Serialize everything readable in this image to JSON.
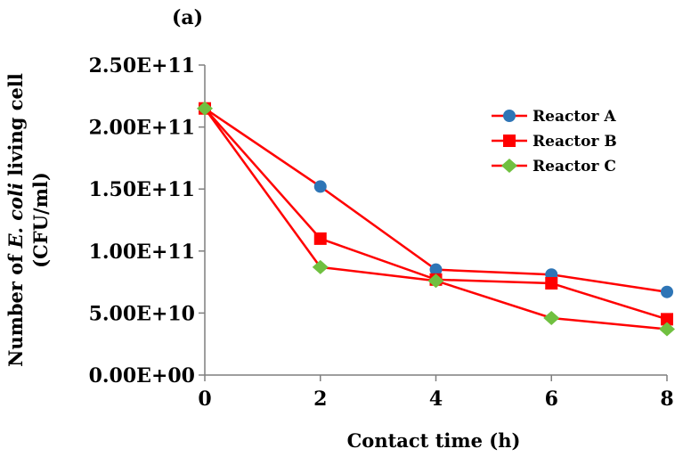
{
  "panel_label": "(a)",
  "chart_data": {
    "type": "line",
    "x_label": "Contact time (h)",
    "y_label_line1_pre": "Number of ",
    "y_label_line1_italic": "E. coli",
    "y_label_line1_post": " living cell",
    "y_label_line2": "(CFU/ml)",
    "x": [
      0,
      2,
      4,
      6,
      8
    ],
    "x_ticks": [
      "0",
      "2",
      "4",
      "6",
      "8"
    ],
    "xlim": [
      0,
      8
    ],
    "ylim": [
      0,
      250000000000
    ],
    "y_ticks": [
      {
        "value": 0,
        "label": "0.00E+00"
      },
      {
        "value": 50000000000,
        "label": "5.00E+10"
      },
      {
        "value": 100000000000,
        "label": "1.00E+11"
      },
      {
        "value": 150000000000,
        "label": "1.50E+11"
      },
      {
        "value": 200000000000,
        "label": "2.00E+11"
      },
      {
        "value": 250000000000,
        "label": "2.50E+11"
      }
    ],
    "grid": false,
    "legend_position": "top-right",
    "line_color": "#ff0000",
    "series": [
      {
        "name": "Reactor A",
        "marker": "circle",
        "color": "#2e75b6",
        "values": [
          215000000000,
          152000000000,
          85000000000,
          81000000000,
          67000000000
        ]
      },
      {
        "name": "Reactor B",
        "marker": "square",
        "color": "#ff0000",
        "values": [
          215000000000,
          110000000000,
          77000000000,
          74000000000,
          45000000000
        ]
      },
      {
        "name": "Reactor C",
        "marker": "diamond",
        "color": "#70c040",
        "values": [
          215000000000,
          87000000000,
          76000000000,
          46000000000,
          37000000000
        ]
      }
    ]
  }
}
